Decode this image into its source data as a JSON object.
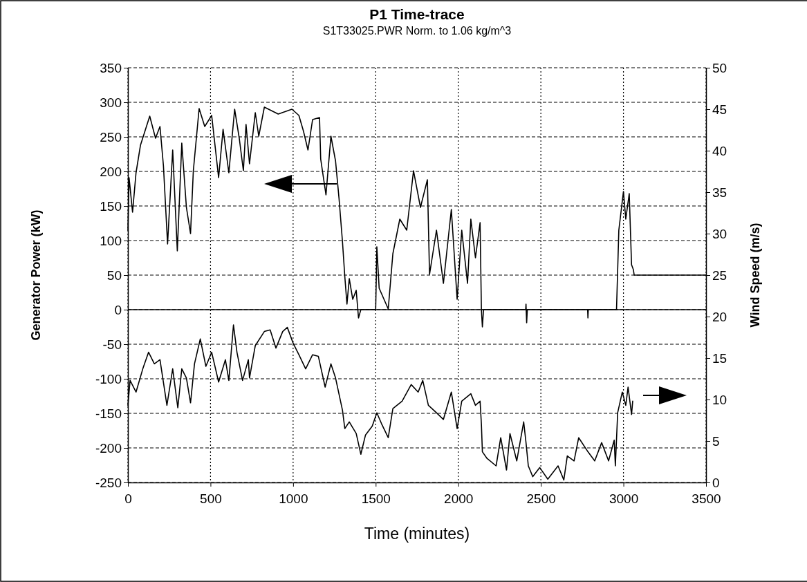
{
  "chart_data": {
    "type": "line",
    "title": "P1 Time-trace",
    "subtitle": "S1T33025.PWR Norm. to 1.06 kg/m^3",
    "xlabel": "Time (minutes)",
    "ylabel": "Generator Power (kW)",
    "y2label": "Wind Speed (m/s)",
    "xlim": [
      0,
      3500
    ],
    "xticks": [
      0,
      500,
      1000,
      1500,
      2000,
      2500,
      3000,
      3500
    ],
    "ylim": [
      -250,
      350
    ],
    "yticks": [
      -250,
      -200,
      -150,
      -100,
      -50,
      0,
      50,
      100,
      150,
      200,
      250,
      300,
      350
    ],
    "y2lim": [
      0,
      50
    ],
    "y2ticks": [
      0,
      5,
      10,
      15,
      20,
      25,
      30,
      35,
      40,
      45,
      50
    ],
    "grid": true,
    "line_style": "solid",
    "ref_lines": [
      {
        "axis": "y",
        "value": 0
      }
    ],
    "series": [
      {
        "color": "#000000",
        "x": [
          0,
          7,
          28,
          49,
          76,
          132,
          167,
          194,
          215,
          240,
          271,
          299,
          326,
          354,
          379,
          396,
          431,
          465,
          507,
          549,
          576,
          611,
          646,
          674,
          699,
          715,
          736,
          771,
          792,
          826,
          910,
          993,
          1035,
          1063,
          1090,
          1118,
          1160,
          1167,
          1199,
          1229,
          1257,
          1278,
          1299,
          1313,
          1326,
          1340,
          1361,
          1382,
          1396,
          1410,
          1500,
          1507,
          1521,
          1576,
          1604,
          1646,
          1688,
          1729,
          1771,
          1813,
          1826,
          1868,
          1910,
          1958,
          1993,
          2021,
          2056,
          2076,
          2104,
          2132,
          2140,
          2146,
          2153,
          2408,
          2410,
          2414,
          2418,
          2422,
          2783,
          2785,
          2787,
          2958,
          2972,
          3000,
          3014,
          3035,
          3049,
          3060,
          3065,
          3500
        ],
        "values": [
          115,
          191,
          141,
          198,
          238,
          280,
          248,
          265,
          208,
          95,
          231,
          85,
          241,
          148,
          110,
          201,
          291,
          265,
          281,
          191,
          261,
          198,
          290,
          248,
          201,
          268,
          211,
          285,
          251,
          293,
          283,
          290,
          281,
          258,
          231,
          275,
          278,
          218,
          166,
          251,
          215,
          161,
          98,
          48,
          8,
          45,
          15,
          28,
          -12,
          0,
          0,
          91,
          31,
          1,
          81,
          131,
          115,
          201,
          148,
          188,
          51,
          115,
          38,
          145,
          15,
          115,
          38,
          131,
          75,
          126,
          0,
          -25,
          0,
          0,
          8,
          -19,
          0,
          0,
          0,
          -12,
          0,
          0,
          115,
          171,
          131,
          168,
          65,
          58,
          50,
          50
        ]
      },
      {
        "color": "#000000",
        "axis": "y2",
        "x": [
          0,
          13,
          49,
          90,
          125,
          160,
          194,
          236,
          271,
          302,
          326,
          354,
          379,
          403,
          438,
          472,
          507,
          549,
          590,
          611,
          639,
          660,
          694,
          729,
          736,
          771,
          826,
          861,
          896,
          937,
          965,
          1000,
          1035,
          1076,
          1118,
          1153,
          1194,
          1229,
          1257,
          1299,
          1313,
          1340,
          1382,
          1410,
          1438,
          1479,
          1507,
          1535,
          1576,
          1604,
          1660,
          1715,
          1757,
          1785,
          1819,
          1868,
          1910,
          1958,
          1993,
          2021,
          2076,
          2104,
          2132,
          2140,
          2146,
          2174,
          2229,
          2257,
          2292,
          2313,
          2354,
          2396,
          2410,
          2424,
          2451,
          2493,
          2542,
          2604,
          2639,
          2660,
          2701,
          2729,
          2785,
          2826,
          2868,
          2910,
          2944,
          2951,
          2965,
          2993,
          3014,
          3028,
          3049,
          3056
        ],
        "values": [
          9.3,
          12.3,
          10.9,
          13.7,
          15.7,
          14.3,
          14.8,
          9.3,
          13.7,
          9.0,
          13.7,
          12.6,
          9.6,
          14.3,
          17.3,
          14.0,
          15.7,
          12.1,
          14.8,
          12.3,
          19.0,
          15.7,
          12.3,
          14.8,
          12.6,
          16.5,
          18.2,
          18.4,
          16.2,
          18.2,
          18.7,
          16.8,
          15.4,
          13.7,
          15.4,
          15.2,
          11.5,
          14.3,
          12.6,
          8.7,
          6.5,
          7.3,
          5.9,
          3.4,
          5.7,
          6.8,
          8.4,
          7.1,
          5.4,
          8.9,
          9.8,
          11.8,
          10.9,
          12.3,
          9.3,
          8.4,
          7.6,
          10.9,
          6.5,
          9.8,
          10.7,
          9.3,
          9.8,
          7.0,
          3.7,
          2.9,
          2.0,
          5.4,
          1.5,
          5.9,
          2.6,
          7.3,
          4.8,
          2.0,
          0.7,
          1.8,
          0.4,
          2.0,
          0.3,
          3.2,
          2.6,
          5.4,
          3.7,
          2.6,
          4.8,
          2.6,
          5.1,
          2.0,
          8.4,
          10.9,
          9.3,
          11.5,
          8.2,
          9.8
        ]
      }
    ]
  }
}
